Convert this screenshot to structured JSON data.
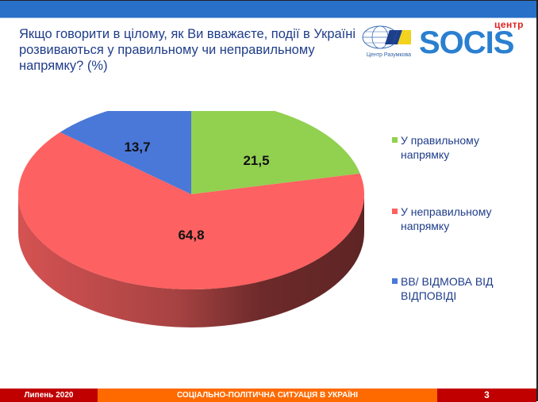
{
  "slide": {
    "title": "Якщо говорити в цілому, як Ви вважаєте, події в Україні розвиваються у правильному чи неправильному напрямку? (%)",
    "logos": {
      "razumkov_caption": "Центр Разумкова",
      "socis_prefix": "центр",
      "socis_word": "SOCIS"
    },
    "colors": {
      "header_bar": "#2870c8",
      "title_text": "#1f3d8a",
      "footer_red": "#c00000",
      "footer_orange": "#ff6a00"
    }
  },
  "chart_data": {
    "type": "pie",
    "style": "3d",
    "title": "Якщо говорити в цілому, як Ви вважаєте, події в Україні розвиваються у правильному чи неправильному напрямку? (%)",
    "categories": [
      "У правильному напрямку",
      "У неправильному напрямку",
      "ВВ/ ВІДМОВА ВІД ВІДПОВІДІ"
    ],
    "values": [
      21.5,
      64.8,
      13.7
    ],
    "labels": [
      "21,5",
      "64,8",
      "13,7"
    ],
    "colors": [
      "#92d050",
      "#fe6161",
      "#4a78d8"
    ],
    "legend_position": "right",
    "unit": "%"
  },
  "legend": {
    "items": [
      {
        "label": "У правильному напрямку",
        "color": "#92d050"
      },
      {
        "label": "У неправильному напрямку",
        "color": "#fe6161"
      },
      {
        "label": "ВВ/ ВІДМОВА ВІД ВІДПОВІДІ",
        "color": "#4a78d8"
      }
    ]
  },
  "footer": {
    "date": "Липень 2020",
    "section": "СОЦІАЛЬНО-ПОЛІТИЧНА СИТУАЦІЯ В УКРАЇНІ",
    "page": "3"
  }
}
